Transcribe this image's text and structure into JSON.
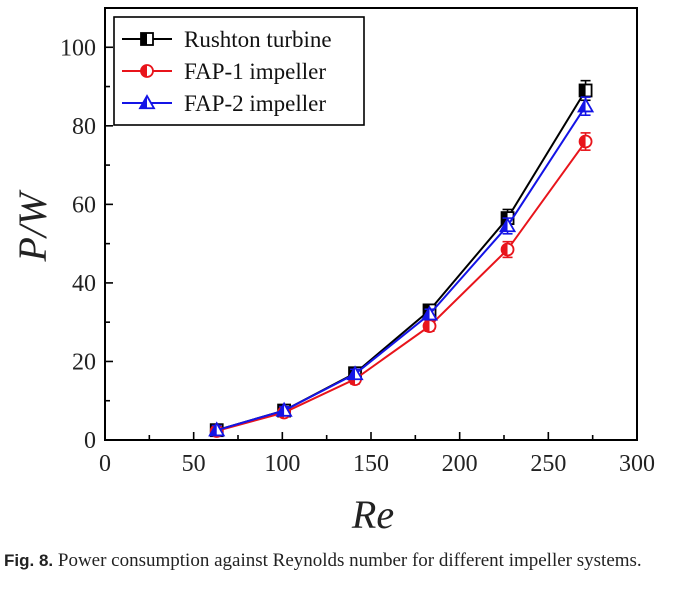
{
  "chart_data": {
    "type": "line",
    "x": [
      63,
      101,
      141,
      183,
      227,
      271
    ],
    "series": [
      {
        "name": "Rushton turbine",
        "color": "#000000",
        "marker": "square-half",
        "values": [
          2.5,
          7.5,
          17.0,
          33.0,
          56.5,
          89.0
        ],
        "errors": [
          1.2,
          1.0,
          1.2,
          1.3,
          2.2,
          2.5
        ]
      },
      {
        "name": "FAP-1 impeller",
        "color": "#e8141b",
        "marker": "circle-half",
        "values": [
          2.3,
          7.0,
          15.5,
          29.0,
          48.5,
          76.0
        ],
        "errors": [
          1.0,
          1.0,
          1.2,
          1.3,
          2.0,
          2.2
        ]
      },
      {
        "name": "FAP-2 impeller",
        "color": "#1414e6",
        "marker": "triangle-half",
        "values": [
          2.5,
          7.5,
          16.8,
          32.0,
          54.5,
          85.0
        ],
        "errors": [
          1.2,
          1.0,
          1.2,
          1.3,
          2.0,
          2.3
        ]
      }
    ],
    "xlabel": "Re",
    "ylabel": "P/W",
    "xlim": [
      0,
      300
    ],
    "ylim": [
      0,
      110
    ],
    "xticks": [
      "0",
      "50",
      "100",
      "150",
      "200",
      "250",
      "300"
    ],
    "yticks": [
      "0",
      "20",
      "40",
      "60",
      "80",
      "100"
    ],
    "xtick_values": [
      0,
      50,
      100,
      150,
      200,
      250,
      300
    ],
    "ytick_values": [
      0,
      20,
      40,
      60,
      80,
      100
    ],
    "grid": false,
    "legend_position": "top-left"
  },
  "caption": {
    "label": "Fig. 8.",
    "text": "Power consumption against Reynolds number for different impeller systems."
  }
}
